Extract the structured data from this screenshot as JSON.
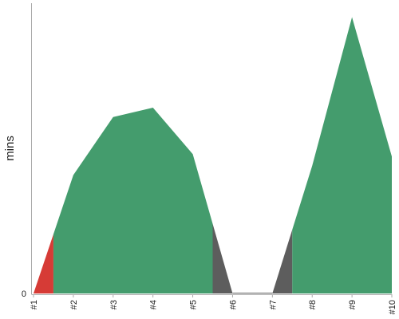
{
  "chart_data": {
    "type": "area",
    "title": "",
    "xlabel": "",
    "ylabel": "mins",
    "grid": false,
    "categories": [
      "#1",
      "#2",
      "#3",
      "#4",
      "#5",
      "#6",
      "#7",
      "#8",
      "#9",
      "#10"
    ],
    "values": [
      0,
      5.1,
      7.6,
      8.0,
      6.0,
      0,
      0,
      5.5,
      11.9,
      5.9
    ],
    "y_ticks": [
      "0"
    ],
    "ylim": [
      0,
      12.5
    ],
    "fill_segments": [
      {
        "x_start": 1.0,
        "x_end": 1.5,
        "color": "#d63b36"
      },
      {
        "x_start": 1.5,
        "x_end": 5.5,
        "color": "#449c6d"
      },
      {
        "x_start": 5.5,
        "x_end": 6.0,
        "color": "#5d5d5d"
      },
      {
        "x_start": 6.0,
        "x_end": 7.0,
        "color": "#5d5d5d"
      },
      {
        "x_start": 7.0,
        "x_end": 7.5,
        "color": "#5d5d5d"
      },
      {
        "x_start": 7.5,
        "x_end": 10.0,
        "color": "#449c6d"
      }
    ],
    "colors": {
      "red": "#d63b36",
      "green": "#449c6d",
      "gray": "#5d5d5d",
      "axis": "#aaaaaa"
    }
  }
}
